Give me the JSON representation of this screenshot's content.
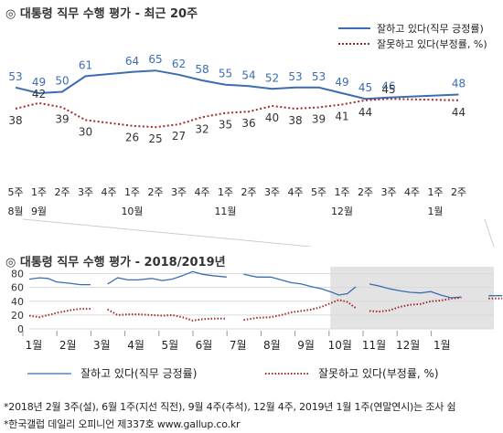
{
  "colors": {
    "approve": "#3b6db3",
    "disapprove": "#a52a2a",
    "grid": "#d9d9d9",
    "shade": "#e3e3e3"
  },
  "chart_data": [
    {
      "type": "line",
      "title": "◎  대통령 직무 수행 평가 - 최근 20주",
      "categories": [
        "5주",
        "1주",
        "2주",
        "3주",
        "4주",
        "1주",
        "2주",
        "3주",
        "4주",
        "1주",
        "2주",
        "3주",
        "4주",
        "5주",
        "1주",
        "2주",
        "3주",
        "4주",
        "1주",
        "2주"
      ],
      "month_labels": [
        {
          "index": 0,
          "label": "8월"
        },
        {
          "index": 1,
          "label": "9월"
        },
        {
          "index": 5,
          "label": "10월"
        },
        {
          "index": 9,
          "label": "11월"
        },
        {
          "index": 14,
          "label": "12월"
        },
        {
          "index": 18,
          "label": "1월"
        }
      ],
      "series": [
        {
          "name": "잘하고 있다(직무 긍정률)",
          "values": [
            53,
            49,
            50,
            61,
            null,
            64,
            65,
            62,
            58,
            55,
            54,
            52,
            53,
            53,
            49,
            45,
            46,
            null,
            null,
            48
          ]
        },
        {
          "name": "잘못하고 있다(부정률, %)",
          "values": [
            38,
            42,
            39,
            30,
            null,
            26,
            25,
            27,
            32,
            35,
            36,
            40,
            38,
            39,
            41,
            44,
            45,
            null,
            null,
            44
          ]
        }
      ],
      "ylim": [
        20,
        70
      ]
    },
    {
      "type": "line",
      "title": "◎  대통령 직무 수행 평가 - 2018/2019년",
      "yticks": [
        0,
        20,
        40,
        60,
        80
      ],
      "ylim": [
        0,
        90
      ],
      "months": [
        "1월",
        "2월",
        "3월",
        "4월",
        "5월",
        "6월",
        "7월",
        "8월",
        "9월",
        "10월",
        "11월",
        "12월",
        "1월"
      ],
      "series": [
        {
          "name": "잘하고 있다(직무 긍정률)",
          "values": [
            [
              0.0,
              72
            ],
            [
              0.3,
              74
            ],
            [
              0.55,
              73
            ],
            [
              0.8,
              68
            ],
            [
              1.2,
              66
            ],
            [
              1.5,
              64
            ],
            [
              1.8,
              64
            ],
            [
              null,
              null
            ],
            [
              2.3,
              65
            ],
            [
              2.6,
              74
            ],
            [
              2.9,
              71
            ],
            [
              3.2,
              71
            ],
            [
              3.6,
              73
            ],
            [
              3.9,
              70
            ],
            [
              4.2,
              72
            ],
            [
              4.5,
              77
            ],
            [
              4.8,
              83
            ],
            [
              5.1,
              79
            ],
            [
              5.4,
              77
            ],
            [
              5.8,
              75
            ],
            [
              null,
              null
            ],
            [
              6.3,
              79
            ],
            [
              6.7,
              75
            ],
            [
              7.1,
              75
            ],
            [
              7.4,
              71
            ],
            [
              7.7,
              67
            ],
            [
              8.0,
              65
            ],
            [
              8.3,
              61
            ],
            [
              8.6,
              58
            ],
            [
              8.9,
              53
            ],
            [
              9.1,
              49
            ],
            [
              9.35,
              51
            ],
            [
              9.6,
              61
            ],
            [
              null,
              null
            ],
            [
              10.0,
              65
            ],
            [
              10.3,
              62
            ],
            [
              10.6,
              58
            ],
            [
              10.9,
              55
            ],
            [
              11.2,
              53
            ],
            [
              11.5,
              52
            ],
            [
              11.8,
              54
            ],
            [
              12.1,
              49
            ],
            [
              12.4,
              45
            ],
            [
              12.7,
              46
            ],
            [
              null,
              null
            ],
            [
              13.5,
              48
            ],
            [
              13.9,
              48
            ]
          ]
        },
        {
          "name": "잘못하고 있다(부정률, %)",
          "values": [
            [
              0.0,
              19
            ],
            [
              0.3,
              17
            ],
            [
              0.55,
              20
            ],
            [
              0.8,
              23
            ],
            [
              1.2,
              27
            ],
            [
              1.5,
              29
            ],
            [
              1.8,
              29
            ],
            [
              null,
              null
            ],
            [
              2.3,
              28
            ],
            [
              2.6,
              20
            ],
            [
              2.9,
              21
            ],
            [
              3.2,
              21
            ],
            [
              3.6,
              20
            ],
            [
              3.9,
              19
            ],
            [
              4.2,
              20
            ],
            [
              4.5,
              17
            ],
            [
              4.8,
              12
            ],
            [
              5.1,
              14
            ],
            [
              5.4,
              15
            ],
            [
              5.8,
              15
            ],
            [
              null,
              null
            ],
            [
              6.3,
              13
            ],
            [
              6.7,
              16
            ],
            [
              7.1,
              17
            ],
            [
              7.4,
              20
            ],
            [
              7.7,
              24
            ],
            [
              8.0,
              26
            ],
            [
              8.3,
              28
            ],
            [
              8.6,
              32
            ],
            [
              8.9,
              38
            ],
            [
              9.1,
              42
            ],
            [
              9.35,
              39
            ],
            [
              9.6,
              30
            ],
            [
              null,
              null
            ],
            [
              10.0,
              26
            ],
            [
              10.3,
              25
            ],
            [
              10.6,
              27
            ],
            [
              10.9,
              32
            ],
            [
              11.2,
              35
            ],
            [
              11.5,
              36
            ],
            [
              11.8,
              40
            ],
            [
              12.1,
              41
            ],
            [
              12.4,
              44
            ],
            [
              12.7,
              45
            ],
            [
              null,
              null
            ],
            [
              13.5,
              44
            ],
            [
              13.9,
              44
            ]
          ]
        }
      ]
    }
  ],
  "footnotes": {
    "line1": "*2018년 2월 3주(설), 6월 1주(지선 직전), 9월 4주(추석), 12월 4주, 2019년 1월 1주(연말연시)는 조사 쉼",
    "line2": "*한국갤럽 데일리 오피니언 제337호 www.gallup.co.kr"
  }
}
